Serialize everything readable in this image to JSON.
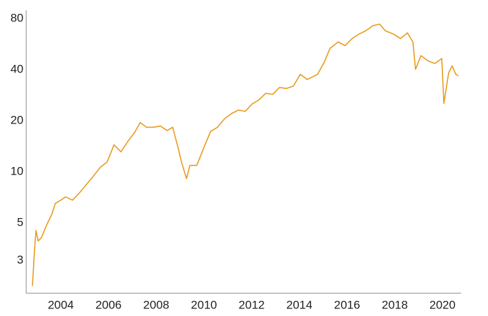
{
  "chart_data": {
    "type": "line",
    "ylog": true,
    "color": "#e99a1d",
    "x": [
      2002.81,
      2002.9,
      2002.96,
      2003.05,
      2003.19,
      2003.42,
      2003.62,
      2003.77,
      2004.0,
      2004.2,
      2004.49,
      2004.78,
      2005.07,
      2005.36,
      2005.65,
      2005.94,
      2006.23,
      2006.52,
      2006.81,
      2007.1,
      2007.33,
      2007.59,
      2007.88,
      2008.17,
      2008.46,
      2008.69,
      2008.92,
      2009.06,
      2009.27,
      2009.41,
      2009.7,
      2009.99,
      2010.28,
      2010.57,
      2010.86,
      2011.15,
      2011.44,
      2011.73,
      2012.02,
      2012.3,
      2012.59,
      2012.88,
      2013.17,
      2013.46,
      2013.75,
      2014.04,
      2014.33,
      2014.76,
      2015.05,
      2015.28,
      2015.63,
      2015.92,
      2016.21,
      2016.5,
      2016.79,
      2017.08,
      2017.37,
      2017.6,
      2017.95,
      2018.24,
      2018.53,
      2018.76,
      2018.87,
      2019.1,
      2019.39,
      2019.68,
      2019.97,
      2020.06,
      2020.26,
      2020.41,
      2020.56,
      2020.67
    ],
    "values": [
      2.12,
      3.5,
      4.5,
      3.9,
      4.1,
      4.9,
      5.6,
      6.5,
      6.8,
      7.1,
      6.8,
      7.5,
      8.4,
      9.4,
      10.6,
      11.4,
      14.4,
      13.1,
      15.1,
      17.1,
      19.5,
      18.3,
      18.3,
      18.6,
      17.5,
      18.3,
      13.8,
      11.4,
      9.1,
      10.9,
      10.9,
      13.8,
      17.3,
      18.3,
      20.5,
      22.0,
      23.1,
      22.7,
      25.1,
      26.5,
      29.0,
      28.6,
      31.4,
      31.0,
      32.0,
      37.5,
      35.0,
      37.5,
      44.4,
      53.3,
      58.3,
      55.4,
      61.0,
      64.8,
      67.9,
      72.7,
      74.2,
      67.9,
      64.8,
      61.0,
      65.9,
      58.3,
      40.2,
      48.4,
      45.1,
      43.5,
      46.5,
      25.3,
      38.4,
      42.1,
      37.5,
      36.8
    ],
    "xlim": [
      2002.55,
      2020.78
    ],
    "xticks": [
      2004,
      2006,
      2008,
      2010,
      2012,
      2014,
      2016,
      2018,
      2020
    ],
    "ylim": [
      1.92,
      89.5
    ],
    "yticks": [
      3,
      5,
      10,
      20,
      40,
      80
    ]
  }
}
